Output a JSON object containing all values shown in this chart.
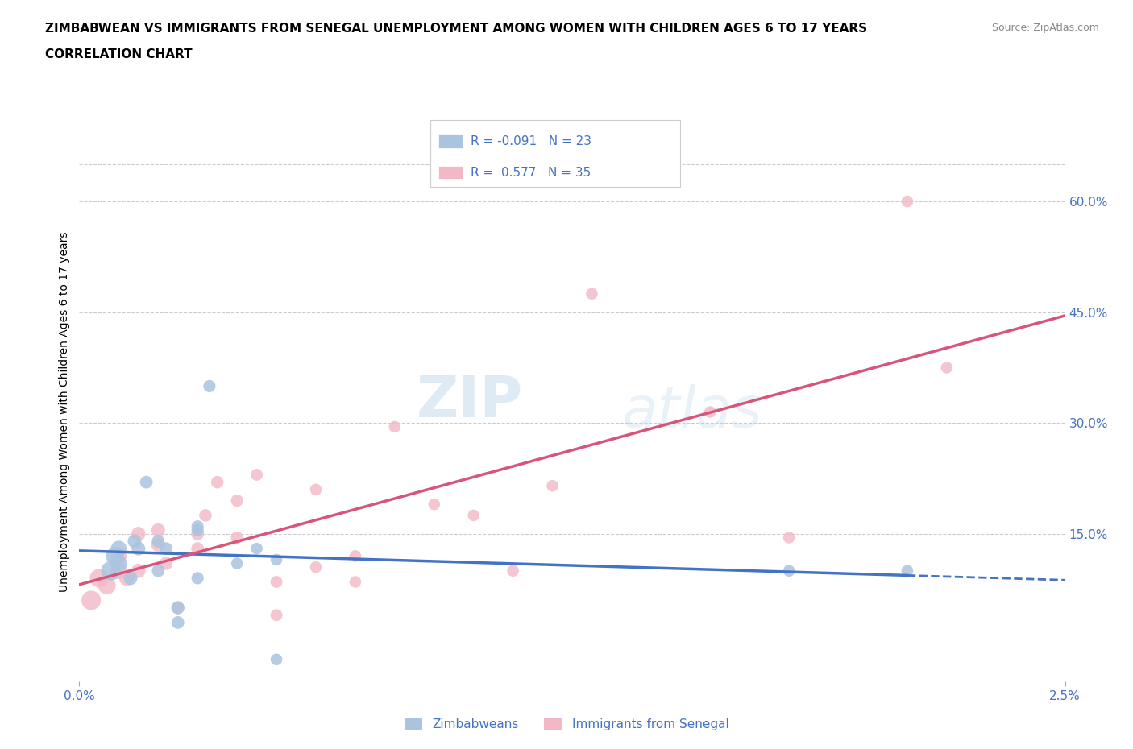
{
  "title_line1": "ZIMBABWEAN VS IMMIGRANTS FROM SENEGAL UNEMPLOYMENT AMONG WOMEN WITH CHILDREN AGES 6 TO 17 YEARS",
  "title_line2": "CORRELATION CHART",
  "source": "Source: ZipAtlas.com",
  "xlabel_ticks": [
    "0.0%",
    "2.5%"
  ],
  "ylabel_left": "Unemployment Among Women with Children Ages 6 to 17 years",
  "ylabel_right_ticks": [
    "15.0%",
    "30.0%",
    "45.0%",
    "60.0%"
  ],
  "ylabel_right_values": [
    0.15,
    0.3,
    0.45,
    0.6
  ],
  "x_min": 0.0,
  "x_max": 0.025,
  "y_min": -0.05,
  "y_max": 0.68,
  "watermark_top": "ZIP",
  "watermark_bot": "atlas",
  "zim_x": [
    0.0008,
    0.0009,
    0.001,
    0.001,
    0.0013,
    0.0014,
    0.0015,
    0.0017,
    0.002,
    0.002,
    0.0022,
    0.0025,
    0.0025,
    0.003,
    0.003,
    0.003,
    0.0033,
    0.004,
    0.0045,
    0.005,
    0.005,
    0.018,
    0.021
  ],
  "zim_y": [
    0.1,
    0.12,
    0.11,
    0.13,
    0.09,
    0.14,
    0.13,
    0.22,
    0.1,
    0.14,
    0.13,
    0.03,
    0.05,
    0.09,
    0.155,
    0.16,
    0.35,
    0.11,
    0.13,
    0.115,
    -0.02,
    0.1,
    0.1
  ],
  "zim_sizes": [
    300,
    250,
    220,
    200,
    150,
    150,
    150,
    130,
    130,
    130,
    130,
    130,
    130,
    120,
    120,
    120,
    120,
    110,
    110,
    110,
    110,
    110,
    110
  ],
  "sen_x": [
    0.0003,
    0.0005,
    0.0007,
    0.001,
    0.001,
    0.0012,
    0.0015,
    0.0015,
    0.002,
    0.002,
    0.0022,
    0.0025,
    0.003,
    0.003,
    0.0032,
    0.0035,
    0.004,
    0.004,
    0.0045,
    0.005,
    0.005,
    0.006,
    0.006,
    0.007,
    0.007,
    0.008,
    0.009,
    0.01,
    0.011,
    0.012,
    0.013,
    0.016,
    0.018,
    0.021,
    0.022
  ],
  "sen_y": [
    0.06,
    0.09,
    0.08,
    0.1,
    0.12,
    0.09,
    0.1,
    0.15,
    0.135,
    0.155,
    0.11,
    0.05,
    0.13,
    0.15,
    0.175,
    0.22,
    0.145,
    0.195,
    0.23,
    0.085,
    0.04,
    0.105,
    0.21,
    0.12,
    0.085,
    0.295,
    0.19,
    0.175,
    0.1,
    0.215,
    0.475,
    0.315,
    0.145,
    0.6,
    0.375
  ],
  "sen_sizes": [
    300,
    270,
    250,
    220,
    200,
    180,
    160,
    160,
    150,
    150,
    140,
    140,
    130,
    130,
    125,
    125,
    120,
    120,
    115,
    115,
    115,
    110,
    110,
    110,
    110,
    110,
    110,
    110,
    110,
    110,
    110,
    110,
    110,
    110,
    110
  ],
  "zim_color": "#aac4e0",
  "sen_color": "#f2b8c6",
  "zim_line_color": "#4472c4",
  "sen_line_color": "#d9547a",
  "legend_text_color": "#4472c4",
  "title_fontsize": 11,
  "tick_fontsize": 11,
  "ylabel_fontsize": 10,
  "background_color": "#ffffff",
  "grid_color": "#cccccc"
}
